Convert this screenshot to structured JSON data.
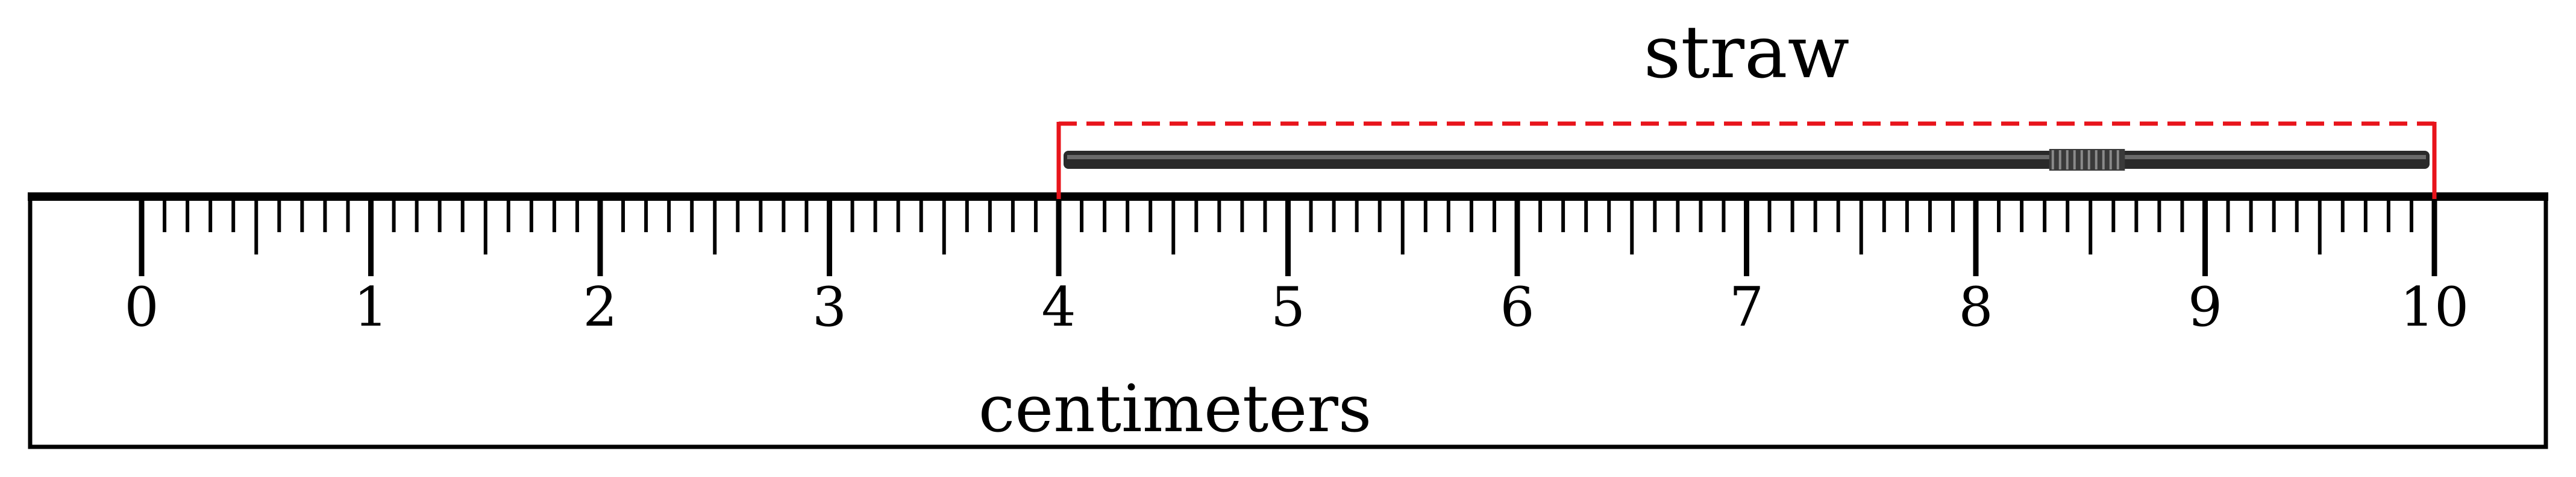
{
  "ruler": {
    "unit_label": "centimeters",
    "min": 0,
    "max": 10,
    "major_step": 1,
    "minor_step": 0.1,
    "tick_labels": [
      "0",
      "1",
      "2",
      "3",
      "4",
      "5",
      "6",
      "7",
      "8",
      "9",
      "10"
    ],
    "color": "#000000"
  },
  "object": {
    "label": "straw",
    "start": 4,
    "end": 10,
    "bracket_color": "#e8141b",
    "color": "#2a2a2a"
  }
}
